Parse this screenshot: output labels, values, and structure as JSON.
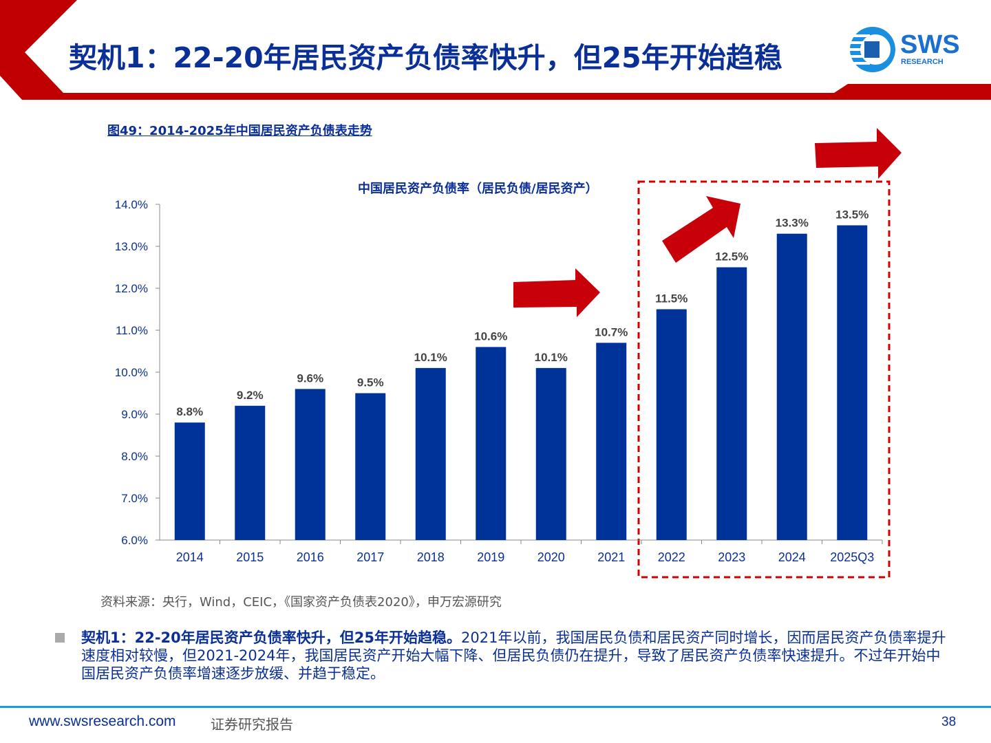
{
  "header": {
    "title": "契机1：22-20年居民资产负债率快升，但25年开始趋稳",
    "logo_text": "SWS",
    "logo_sub": "RESEARCH"
  },
  "figure": {
    "title": "图49：2014-2025年中国居民资产负债表走势",
    "source": "资料来源：央行，Wind，CEIC，《国家资产负债表2020》，申万宏源研究"
  },
  "chart_data": {
    "type": "bar",
    "title": "中国居民资产负债率（居民负债/居民资产）",
    "categories": [
      "2014",
      "2015",
      "2016",
      "2017",
      "2018",
      "2019",
      "2020",
      "2021",
      "2022",
      "2023",
      "2024",
      "2025Q3"
    ],
    "values": [
      8.8,
      9.2,
      9.6,
      9.5,
      10.1,
      10.6,
      10.1,
      10.7,
      11.5,
      12.5,
      13.3,
      13.5
    ],
    "data_labels": [
      "8.8%",
      "9.2%",
      "9.6%",
      "9.5%",
      "10.1%",
      "10.6%",
      "10.1%",
      "10.7%",
      "11.5%",
      "12.5%",
      "13.3%",
      "13.5%"
    ],
    "yticks": [
      "6.0%",
      "7.0%",
      "8.0%",
      "9.0%",
      "10.0%",
      "11.0%",
      "12.0%",
      "13.0%",
      "14.0%"
    ],
    "ylim": [
      6,
      14
    ],
    "xlabel": "",
    "ylabel": "",
    "grid": false,
    "bar_color": "#003399",
    "highlight_range": [
      "2022",
      "2025Q3"
    ],
    "highlight_color": "#cc0000"
  },
  "body": {
    "bold_lead": "契机1：22-20年居民资产负债率快升，但25年开始趋稳。",
    "text": "2021年以前，我国居民负债和居民资产同时增长，因而居民资产负债率提升速度相对较慢，但2021-2024年，我国居民资产开始大幅下降、但居民负债仍在提升，导致了居民资产负债率快速提升。不过年开始中国居民资产负债率增速逐步放缓、并趋于稳定。"
  },
  "footer": {
    "url": "www.swsresearch.com",
    "report_type": "证券研究报告",
    "page": "38"
  }
}
